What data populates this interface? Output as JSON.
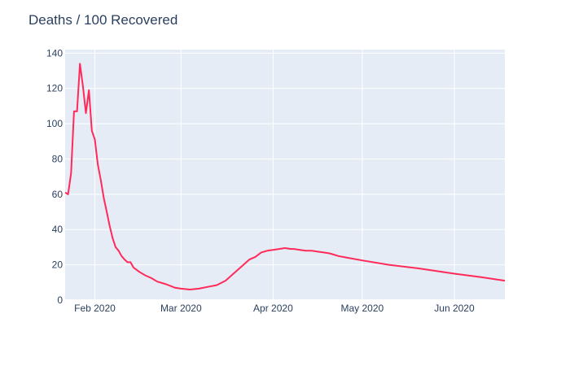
{
  "chart_data": {
    "type": "line",
    "title": "Deaths / 100 Recovered",
    "xlabel": "",
    "ylabel": "",
    "ylim": [
      0,
      142
    ],
    "xlim": [
      "2020-01-22",
      "2020-06-18"
    ],
    "yticks": [
      0,
      20,
      40,
      60,
      80,
      100,
      120,
      140
    ],
    "xticks": [
      {
        "date": "2020-02-01",
        "label": "Feb 2020"
      },
      {
        "date": "2020-03-01",
        "label": "Mar 2020"
      },
      {
        "date": "2020-04-01",
        "label": "Apr 2020"
      },
      {
        "date": "2020-05-01",
        "label": "May 2020"
      },
      {
        "date": "2020-06-01",
        "label": "Jun 2020"
      }
    ],
    "grid": true,
    "series": [
      {
        "color": "#ff2a5a",
        "x": [
          "2020-01-22",
          "2020-01-23",
          "2020-01-24",
          "2020-01-25",
          "2020-01-26",
          "2020-01-27",
          "2020-01-28",
          "2020-01-29",
          "2020-01-30",
          "2020-01-31",
          "2020-02-01",
          "2020-02-02",
          "2020-02-03",
          "2020-02-04",
          "2020-02-05",
          "2020-02-06",
          "2020-02-07",
          "2020-02-08",
          "2020-02-09",
          "2020-02-10",
          "2020-02-11",
          "2020-02-12",
          "2020-02-13",
          "2020-02-14",
          "2020-02-16",
          "2020-02-18",
          "2020-02-20",
          "2020-02-22",
          "2020-02-25",
          "2020-02-28",
          "2020-03-01",
          "2020-03-04",
          "2020-03-07",
          "2020-03-10",
          "2020-03-13",
          "2020-03-16",
          "2020-03-18",
          "2020-03-20",
          "2020-03-22",
          "2020-03-24",
          "2020-03-26",
          "2020-03-28",
          "2020-03-30",
          "2020-04-01",
          "2020-04-03",
          "2020-04-05",
          "2020-04-07",
          "2020-04-08",
          "2020-04-10",
          "2020-04-12",
          "2020-04-14",
          "2020-04-16",
          "2020-04-18",
          "2020-04-20",
          "2020-04-23",
          "2020-04-26",
          "2020-05-01",
          "2020-05-10",
          "2020-05-20",
          "2020-06-01",
          "2020-06-10",
          "2020-06-18"
        ],
        "y": [
          61,
          60,
          72,
          107,
          107,
          134,
          121,
          106,
          119,
          96,
          91,
          77,
          68,
          58,
          50,
          42,
          35,
          30,
          28,
          25,
          23,
          21.5,
          21.5,
          18.5,
          16,
          14,
          12.5,
          10.5,
          9,
          7,
          6.5,
          6,
          6.5,
          7.5,
          8.5,
          11,
          14,
          17,
          20,
          23,
          24.5,
          27,
          28,
          28.5,
          29,
          29.5,
          29,
          29,
          28.5,
          28,
          28,
          27.5,
          27,
          26.5,
          25,
          24,
          22.5,
          20,
          18,
          15,
          13,
          11
        ]
      }
    ]
  }
}
